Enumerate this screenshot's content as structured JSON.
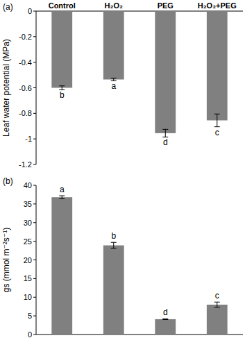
{
  "chart_data": [
    {
      "type": "bar",
      "title": "(a)",
      "y_label": "Leaf water potential (MPa)",
      "categories": [
        "Control",
        "H₂O₂",
        "PEG",
        "H₂O₂+PEG"
      ],
      "values": [
        -0.6,
        -0.535,
        -0.955,
        -0.855
      ],
      "errors": [
        0.015,
        0.01,
        0.03,
        0.05
      ],
      "annotations": [
        "b",
        "a",
        "d",
        "c"
      ],
      "color": "#808080",
      "ylim": [
        -1.2,
        0
      ],
      "yticks": [
        -1.2,
        -1,
        -0.8,
        -0.6,
        -0.4,
        -0.2,
        0
      ],
      "grid": false
    },
    {
      "type": "bar",
      "title": "(b)",
      "y_label": "gs (mmol m⁻²s⁻¹)",
      "categories": [
        null,
        null,
        null,
        null
      ],
      "values": [
        36.8,
        23.9,
        4.1,
        8.0
      ],
      "errors": [
        0.4,
        0.8,
        0.1,
        0.7
      ],
      "annotations": [
        "a",
        "b",
        "d",
        "c"
      ],
      "color": "#808080",
      "ylim": [
        0,
        40
      ],
      "yticks": [
        0,
        5,
        10,
        15,
        20,
        25,
        30,
        35,
        40
      ],
      "grid": false
    }
  ]
}
